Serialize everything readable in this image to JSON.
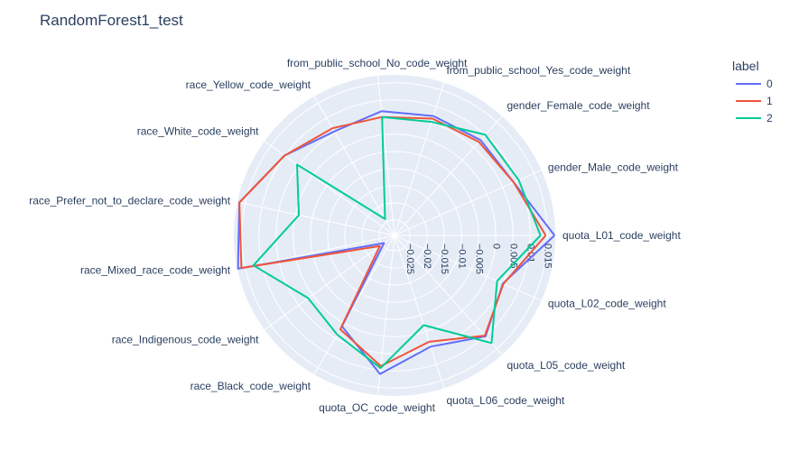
{
  "chart_data": {
    "type": "radar",
    "title": "RandomForest1_test",
    "axes": [
      "quota_L01_code_weight",
      "gender_Male_code_weight",
      "gender_Female_code_weight",
      "from_public_school_Yes_code_weight",
      "from_public_school_No_code_weight",
      "race_Yellow_code_weight",
      "race_White_code_weight",
      "race_Prefer_not_to_declare_code_weight",
      "race_Mixed_race_code_weight",
      "race_Indigenous_code_weight",
      "race_Black_code_weight",
      "quota_OC_code_weight",
      "quota_L06_code_weight",
      "quota_L05_code_weight",
      "quota_L02_code_weight"
    ],
    "radial_range": [
      -0.0295,
      0.0173
    ],
    "radial_ticks": [
      -0.025,
      -0.02,
      -0.015,
      -0.01,
      -0.005,
      0,
      0.005,
      0.01,
      0.015
    ],
    "radial_tick_labels": [
      "−0.025",
      "−0.02",
      "−0.015",
      "−0.01",
      "−0.005",
      "0",
      "0.005",
      "0.01",
      "0.015"
    ],
    "legend_title": "label",
    "legend_placement": "top-right",
    "grid": true,
    "series": [
      {
        "name": "0",
        "color": "#636efa",
        "values": [
          0.0171,
          0.0085,
          0.0079,
          0.0071,
          0.0069,
          0.0055,
          0.0101,
          0.0167,
          0.0171,
          -0.0257,
          0.0011,
          0.0111,
          0.0046,
          0.0101,
          0.005
        ]
      },
      {
        "name": "1",
        "color": "#ef553b",
        "values": [
          0.0145,
          0.0085,
          0.0072,
          0.0063,
          0.0052,
          0.0066,
          0.0101,
          0.0167,
          0.0161,
          -0.0242,
          0.0021,
          0.0088,
          0.0031,
          0.0098,
          0.0052
        ]
      },
      {
        "name": "2",
        "color": "#00cc96",
        "values": [
          0.013,
          0.0101,
          0.01,
          0.0053,
          0.0052,
          -0.024,
          0.0056,
          -0.001,
          0.0125,
          0.0016,
          0.0039,
          0.0094,
          -0.002,
          0.0127,
          0.0032
        ]
      }
    ]
  }
}
